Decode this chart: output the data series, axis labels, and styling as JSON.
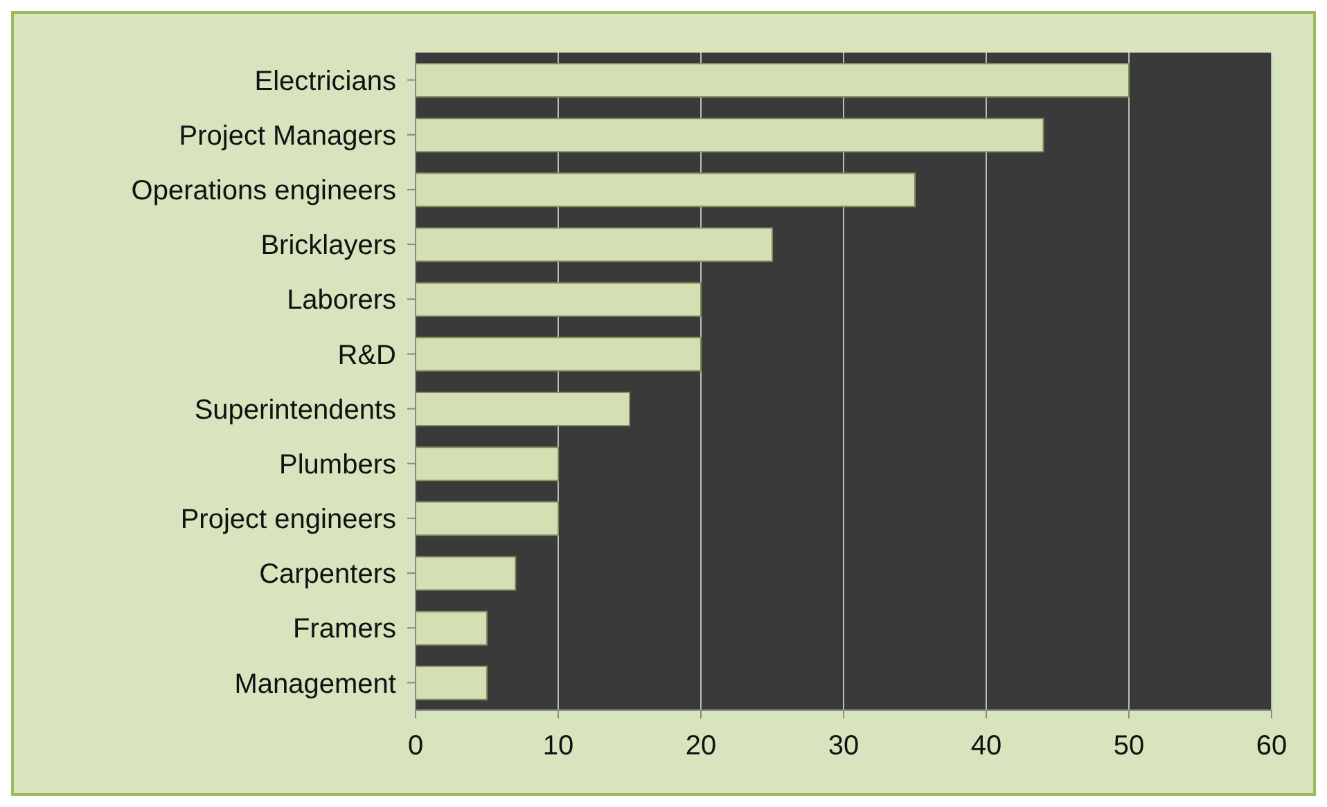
{
  "chart_data": {
    "type": "bar",
    "orientation": "horizontal",
    "categories": [
      "Electricians",
      "Project Managers",
      "Operations engineers",
      "Bricklayers",
      "Laborers",
      "R&D",
      "Superintendents",
      "Plumbers",
      "Project engineers",
      "Carpenters",
      "Framers",
      "Management"
    ],
    "values": [
      50,
      44,
      35,
      25,
      20,
      20,
      15,
      10,
      10,
      7,
      5,
      5
    ],
    "color": "#d4e0b4",
    "xlim": [
      0,
      60
    ],
    "xticks": [
      0,
      10,
      20,
      30,
      40,
      50,
      60
    ],
    "grid": "x"
  }
}
